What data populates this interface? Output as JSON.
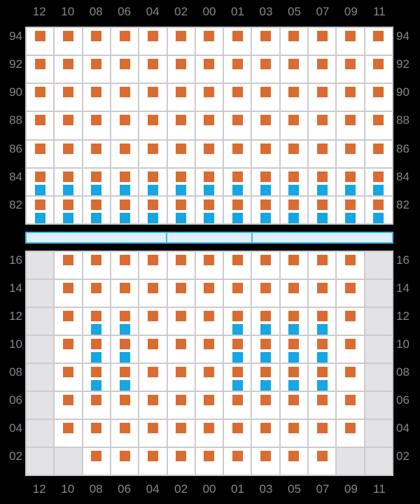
{
  "colors": {
    "background": "#000000",
    "cell_white": "#FFFFFF",
    "cell_gray": "#E3E3E5",
    "grid_line": "#CBCBCF",
    "orange_marker": "#DB6C31",
    "blue_marker": "#15A6E3",
    "bar_fill": "#DDF0FB",
    "bar_border": "#45B7E8",
    "label_text": "#87878C"
  },
  "chart_data": {
    "type": "heatmap",
    "columns": [
      "12",
      "10",
      "08",
      "06",
      "04",
      "02",
      "00",
      "01",
      "03",
      "05",
      "07",
      "09",
      "11"
    ],
    "legend": {
      "O": "orange square marker",
      "OB": "orange square above blue square marker",
      "G": "gray empty cell (no data)"
    },
    "panels": [
      {
        "name": "top",
        "row_labels": [
          "94",
          "92",
          "90",
          "88",
          "86",
          "84",
          "82"
        ],
        "cells": [
          [
            "O",
            "O",
            "O",
            "O",
            "O",
            "O",
            "O",
            "O",
            "O",
            "O",
            "O",
            "O",
            "O"
          ],
          [
            "O",
            "O",
            "O",
            "O",
            "O",
            "O",
            "O",
            "O",
            "O",
            "O",
            "O",
            "O",
            "O"
          ],
          [
            "O",
            "O",
            "O",
            "O",
            "O",
            "O",
            "O",
            "O",
            "O",
            "O",
            "O",
            "O",
            "O"
          ],
          [
            "O",
            "O",
            "O",
            "O",
            "O",
            "O",
            "O",
            "O",
            "O",
            "O",
            "O",
            "O",
            "O"
          ],
          [
            "O",
            "O",
            "O",
            "O",
            "O",
            "O",
            "O",
            "O",
            "O",
            "O",
            "O",
            "O",
            "O"
          ],
          [
            "OB",
            "OB",
            "OB",
            "OB",
            "OB",
            "OB",
            "OB",
            "OB",
            "OB",
            "OB",
            "OB",
            "OB",
            "OB"
          ],
          [
            "OB",
            "OB",
            "OB",
            "OB",
            "OB",
            "OB",
            "OB",
            "OB",
            "OB",
            "OB",
            "OB",
            "OB",
            "OB"
          ]
        ]
      },
      {
        "name": "bottom",
        "row_labels": [
          "16",
          "14",
          "12",
          "10",
          "08",
          "06",
          "04",
          "02"
        ],
        "cells": [
          [
            "G",
            "O",
            "O",
            "O",
            "O",
            "O",
            "O",
            "O",
            "O",
            "O",
            "O",
            "O",
            "G"
          ],
          [
            "G",
            "O",
            "O",
            "O",
            "O",
            "O",
            "O",
            "O",
            "O",
            "O",
            "O",
            "O",
            "G"
          ],
          [
            "G",
            "O",
            "OB",
            "OB",
            "O",
            "O",
            "O",
            "OB",
            "OB",
            "OB",
            "OB",
            "O",
            "G"
          ],
          [
            "G",
            "O",
            "OB",
            "OB",
            "O",
            "O",
            "O",
            "OB",
            "OB",
            "OB",
            "OB",
            "O",
            "G"
          ],
          [
            "G",
            "O",
            "OB",
            "OB",
            "O",
            "O",
            "O",
            "OB",
            "OB",
            "OB",
            "OB",
            "O",
            "G"
          ],
          [
            "G",
            "O",
            "O",
            "O",
            "O",
            "O",
            "O",
            "O",
            "O",
            "O",
            "O",
            "O",
            "G"
          ],
          [
            "G",
            "O",
            "O",
            "O",
            "O",
            "O",
            "O",
            "O",
            "O",
            "O",
            "O",
            "O",
            "G"
          ],
          [
            "G",
            "G",
            "O",
            "O",
            "O",
            "O",
            "O",
            "O",
            "O",
            "O",
            "O",
            "G",
            "G"
          ]
        ]
      }
    ],
    "divider_bar": {
      "segments": 3,
      "segment_column_spans": [
        5,
        3,
        5
      ]
    },
    "layout_hints": {
      "top_axis_position": "above top panel",
      "bottom_axis_position": "below bottom panel",
      "row_labels_position": "both left and right sides",
      "grid": "on"
    }
  }
}
